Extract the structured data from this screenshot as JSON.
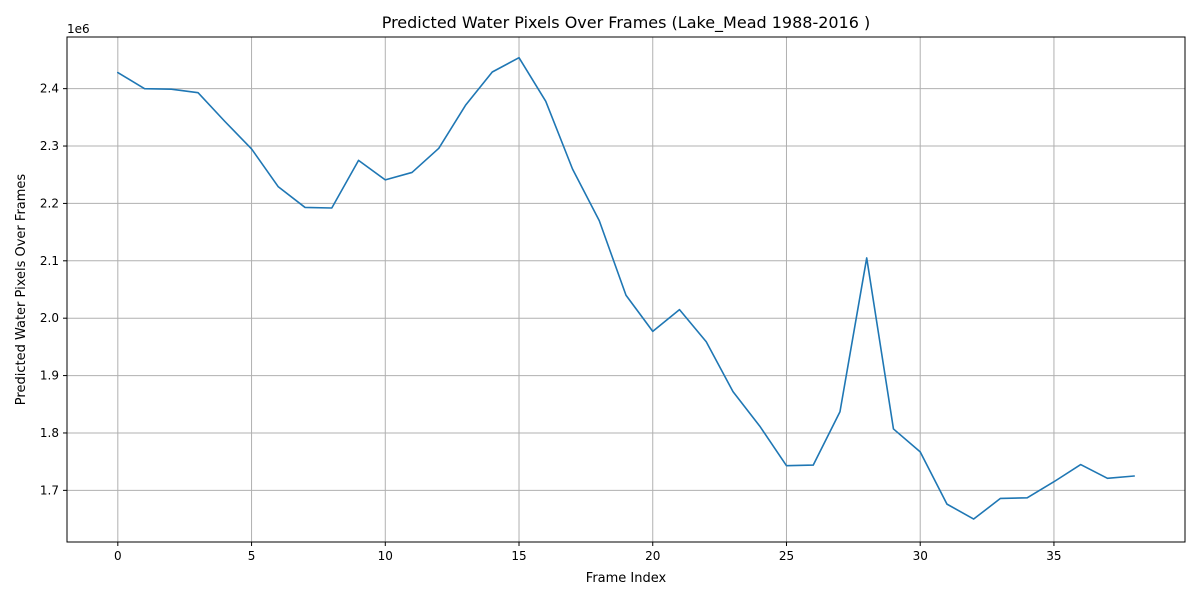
{
  "chart_data": {
    "type": "line",
    "title": "Predicted Water Pixels Over Frames (Lake_Mead 1988-2016 )",
    "xlabel": "Frame Index",
    "ylabel": "Predicted Water Pixels Over Frames",
    "y_offset_label": "1e6",
    "xlim": [
      -1.9,
      39.9
    ],
    "ylim": [
      1610000,
      2490000
    ],
    "x_ticks": [
      0,
      5,
      10,
      15,
      20,
      25,
      30,
      35
    ],
    "y_ticks": [
      1700000,
      1800000,
      1900000,
      2000000,
      2100000,
      2200000,
      2300000,
      2400000
    ],
    "y_tick_labels": [
      "1.7",
      "1.8",
      "1.9",
      "2.0",
      "2.1",
      "2.2",
      "2.3",
      "2.4"
    ],
    "grid": true,
    "series": [
      {
        "color": "#1f77b4",
        "x": [
          0,
          1,
          2,
          3,
          4,
          5,
          6,
          7,
          8,
          9,
          10,
          11,
          12,
          13,
          14,
          15,
          16,
          17,
          18,
          19,
          20,
          21,
          22,
          23,
          24,
          25,
          26,
          27,
          28,
          29,
          30,
          31,
          32,
          33,
          34,
          35,
          36,
          37,
          38
        ],
        "values": [
          2428000,
          2400000,
          2399000,
          2393000,
          2343000,
          2295000,
          2229000,
          2193000,
          2192000,
          2275000,
          2241000,
          2254000,
          2296000,
          2371000,
          2429000,
          2454000,
          2378000,
          2260000,
          2170000,
          2040000,
          1977000,
          2015000,
          1959000,
          1872000,
          1812000,
          1743000,
          1744000,
          1837000,
          2105000,
          1807000,
          1767000,
          1676000,
          1650000,
          1686000,
          1687000,
          1715000,
          1745000,
          1721000,
          1725000
        ]
      }
    ]
  }
}
